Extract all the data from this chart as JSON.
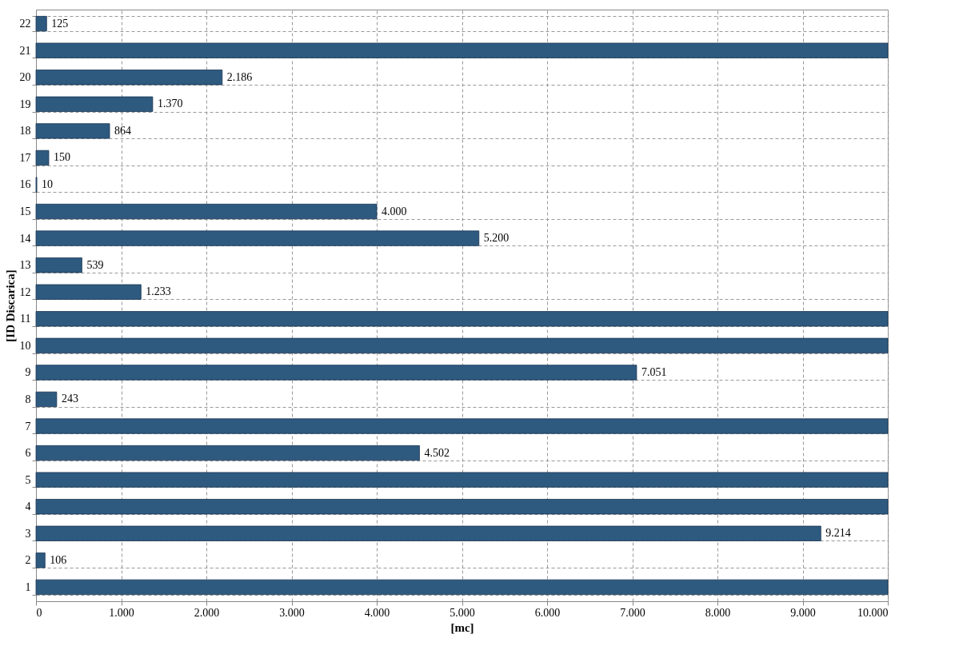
{
  "chart_data": {
    "type": "bar",
    "orientation": "horizontal",
    "xlabel": "[mc]",
    "ylabel": "[ID Discarica]",
    "categories": [
      "22",
      "21",
      "20",
      "19",
      "18",
      "17",
      "16",
      "15",
      "14",
      "13",
      "12",
      "11",
      "10",
      "9",
      "8",
      "7",
      "6",
      "5",
      "4",
      "3",
      "2",
      "1"
    ],
    "values": [
      125,
      10000,
      2186,
      1370,
      864,
      150,
      10,
      4000,
      5200,
      539,
      1233,
      10000,
      10000,
      7051,
      243,
      10000,
      4502,
      10000,
      10000,
      9214,
      106,
      10000
    ],
    "value_labels": [
      "125",
      null,
      "2.186",
      "1.370",
      "864",
      "150",
      "10",
      "4.000",
      "5.200",
      "539",
      "1.233",
      null,
      null,
      "7.051",
      "243",
      null,
      "4.502",
      null,
      null,
      "9.214",
      "106",
      null
    ],
    "color": "#2e5a80",
    "xlim": [
      0,
      10000
    ],
    "xticks": [
      0,
      {
        "value": 1000,
        "label": "1.000"
      },
      {
        "value": 2000,
        "label": "2.000"
      },
      {
        "value": 3000,
        "label": "3.000"
      },
      {
        "value": 4000,
        "label": "4.000"
      },
      {
        "value": 5000,
        "label": "5.000"
      },
      {
        "value": 6000,
        "label": "6.000"
      },
      {
        "value": 7000,
        "label": "7.000"
      },
      {
        "value": 8000,
        "label": "8.000"
      },
      {
        "value": 9000,
        "label": "9.000"
      },
      {
        "value": 10000,
        "label": "10.000"
      }
    ],
    "grid": true
  }
}
